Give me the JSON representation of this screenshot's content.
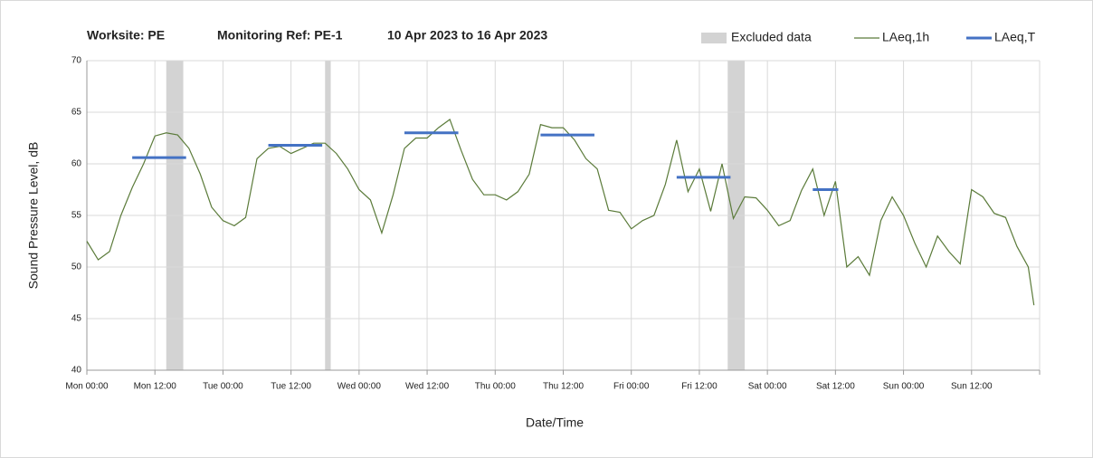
{
  "chart_data": {
    "type": "line",
    "title_parts": [
      "Worksite: PE",
      "Monitoring Ref: PE-1",
      "10 Apr 2023 to 16 Apr 2023"
    ],
    "ylabel": "Sound Pressure Level, dB",
    "xlabel": "Date/Time",
    "xlim": [
      0,
      168
    ],
    "xticks": [
      {
        "value": 0,
        "label": "Mon 00:00"
      },
      {
        "value": 12,
        "label": "Mon 12:00"
      },
      {
        "value": 24,
        "label": "Tue 00:00"
      },
      {
        "value": 36,
        "label": "Tue 12:00"
      },
      {
        "value": 48,
        "label": "Wed 00:00"
      },
      {
        "value": 60,
        "label": "Wed 12:00"
      },
      {
        "value": 72,
        "label": "Thu 00:00"
      },
      {
        "value": 84,
        "label": "Thu 12:00"
      },
      {
        "value": 96,
        "label": "Fri 00:00"
      },
      {
        "value": 108,
        "label": "Fri 12:00"
      },
      {
        "value": 120,
        "label": "Sat 00:00"
      },
      {
        "value": 132,
        "label": "Sat 12:00"
      },
      {
        "value": 144,
        "label": "Sun 00:00"
      },
      {
        "value": 156,
        "label": "Sun 12:00"
      },
      {
        "value": 168,
        "label": ""
      }
    ],
    "ylim": [
      40,
      70
    ],
    "yticks": [
      40,
      45,
      50,
      55,
      60,
      65,
      70
    ],
    "grid": true,
    "legend": "top-right",
    "excluded": {
      "name": "Excluded data",
      "color": "#d3d3d3",
      "ranges": [
        {
          "start": 14,
          "end": 17
        },
        {
          "start": 42,
          "end": 43
        },
        {
          "start": 113,
          "end": 116
        }
      ]
    },
    "series": [
      {
        "name": "LAeq,1h",
        "color": "#5b7b3a",
        "x": [
          0,
          2,
          4,
          6,
          8,
          10,
          12,
          14,
          16,
          18,
          20,
          22,
          24,
          26,
          28,
          30,
          32,
          34,
          36,
          38,
          40,
          42,
          44,
          46,
          48,
          50,
          52,
          54,
          56,
          58,
          60,
          62,
          64,
          66,
          68,
          70,
          72,
          74,
          76,
          78,
          80,
          82,
          84,
          86,
          88,
          90,
          92,
          94,
          96,
          98,
          100,
          102,
          104,
          106,
          108,
          110,
          112,
          114,
          116,
          118,
          120,
          122,
          124,
          126,
          128,
          130,
          132,
          134,
          136,
          138,
          140,
          142,
          144,
          146,
          148,
          150,
          152,
          154,
          156,
          158,
          160,
          162,
          164,
          166,
          167
        ],
        "values": [
          52.5,
          50.7,
          51.5,
          55,
          57.7,
          60,
          62.7,
          63,
          62.8,
          61.5,
          59,
          55.8,
          54.5,
          54,
          54.8,
          60.5,
          61.5,
          61.7,
          61,
          61.5,
          62,
          62,
          61,
          59.5,
          57.5,
          56.5,
          53.3,
          57,
          61.5,
          62.5,
          62.5,
          63.5,
          64.3,
          61.3,
          58.5,
          57,
          57,
          56.5,
          57.3,
          59,
          63.8,
          63.5,
          63.5,
          62.3,
          60.5,
          59.5,
          55.5,
          55.3,
          53.7,
          54.5,
          55,
          58,
          62.3,
          57.3,
          59.5,
          55.4,
          60,
          54.7,
          56.8,
          56.7,
          55.5,
          54,
          54.5,
          57.4,
          59.5,
          55,
          58.3,
          50,
          51,
          49.2,
          54.5,
          56.8,
          55,
          52.3,
          50,
          53,
          51.5,
          50.3,
          57.5,
          56.8,
          55.2,
          54.8,
          52,
          50,
          46.3
        ]
      },
      {
        "name": "LAeq,T",
        "color": "#4472c4",
        "segments": [
          {
            "start": 8,
            "end": 17.5,
            "value": 60.6
          },
          {
            "start": 32,
            "end": 41.5,
            "value": 61.8
          },
          {
            "start": 56,
            "end": 65.5,
            "value": 63.0
          },
          {
            "start": 80,
            "end": 89.5,
            "value": 62.8
          },
          {
            "start": 104,
            "end": 113.5,
            "value": 58.7
          },
          {
            "start": 128,
            "end": 132.5,
            "value": 57.5
          }
        ]
      }
    ]
  }
}
